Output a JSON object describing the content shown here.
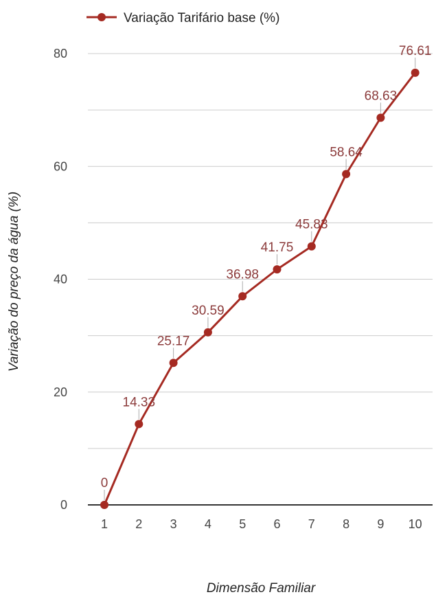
{
  "chart_data": {
    "type": "line",
    "x": [
      1,
      2,
      3,
      4,
      5,
      6,
      7,
      8,
      9,
      10
    ],
    "series": [
      {
        "name": "Variação Tarifário base (%)",
        "values": [
          0,
          14.33,
          25.17,
          30.59,
          36.98,
          41.75,
          45.83,
          58.64,
          68.63,
          76.61
        ],
        "labels": [
          "0",
          "14.33",
          "25.17",
          "30.59",
          "36.98",
          "41.75",
          "45.83",
          "58.64",
          "68.63",
          "76.61"
        ],
        "color": "#a52a22"
      }
    ],
    "title": "",
    "xlabel": "Dimensão Familiar",
    "ylabel": "Variação do preço da água (%)",
    "ylim": [
      0,
      80
    ],
    "yticks": [
      0,
      20,
      40,
      60,
      80
    ],
    "minor_gridlines": [
      10,
      30,
      50,
      70
    ],
    "xticks": [
      "1",
      "2",
      "3",
      "4",
      "5",
      "6",
      "7",
      "8",
      "9",
      "10"
    ],
    "grid": true,
    "legend_position": "top-left"
  },
  "colors": {
    "series": "#a52a22",
    "gridline": "#cccccc",
    "axis": "#333333",
    "label": "#8b3a3a"
  }
}
